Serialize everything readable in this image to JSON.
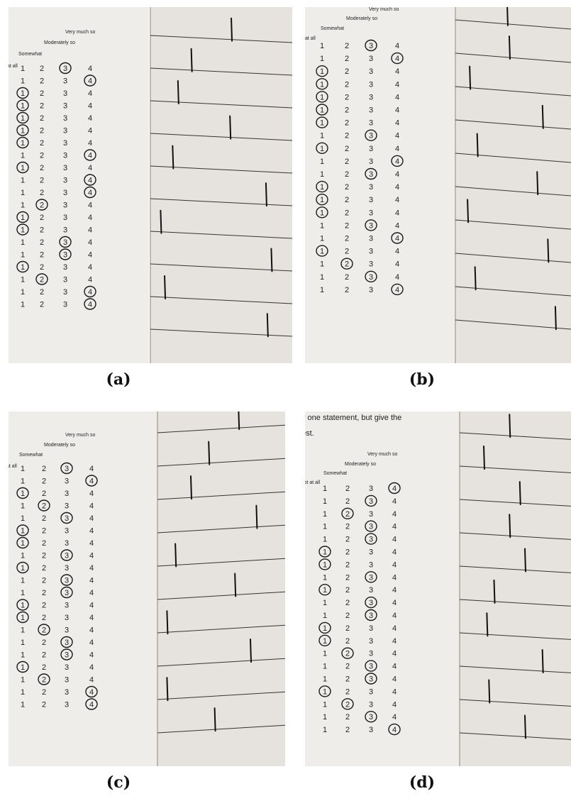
{
  "figure": {
    "panels": [
      {
        "caption": "(a)",
        "header": {
          "very_much": "Very much so",
          "moderately": "Moderately so",
          "somewhat": "Somewhat",
          "not_at_all": "at all"
        },
        "scale": [
          "1",
          "2",
          "3",
          "4"
        ],
        "circled": [
          3,
          4,
          1,
          1,
          1,
          1,
          1,
          4,
          1,
          4,
          4,
          2,
          1,
          1,
          3,
          3,
          1,
          2,
          4,
          4
        ],
        "slider_marks": [
          0.58,
          0.28,
          0.18,
          0.57,
          0.14,
          0.84,
          0.05,
          0.88,
          0.08,
          0.85
        ]
      },
      {
        "caption": "(b)",
        "header": {
          "very_much": "Very much so",
          "moderately": "Moderately so",
          "somewhat": "Somewhat",
          "not_at_all": "at all"
        },
        "scale": [
          "1",
          "2",
          "3",
          "4"
        ],
        "circled": [
          3,
          4,
          1,
          1,
          1,
          1,
          1,
          3,
          1,
          4,
          3,
          1,
          1,
          1,
          3,
          4,
          1,
          2,
          3,
          4
        ],
        "slider_marks": [
          0.45,
          0.47,
          0.1,
          0.78,
          0.17,
          0.73,
          0.08,
          0.83,
          0.15,
          0.9
        ]
      },
      {
        "caption": "(c)",
        "header": {
          "very_much": "Very much so",
          "moderately": "Moderately so",
          "somewhat": "Somewhat",
          "not_at_all": "at all"
        },
        "scale": [
          "1",
          "2",
          "3",
          "4"
        ],
        "circled": [
          3,
          4,
          1,
          2,
          3,
          1,
          1,
          3,
          1,
          3,
          3,
          1,
          1,
          2,
          3,
          3,
          1,
          2,
          4,
          4
        ],
        "slider_marks": [
          0.65,
          0.4,
          0.25,
          0.8,
          0.12,
          0.62,
          0.05,
          0.75,
          0.05,
          0.45
        ]
      },
      {
        "caption": "(d)",
        "header": {
          "instructions": "y one statement, but give the",
          "instructions2": "est.",
          "very_much": "Very much so",
          "moderately": "Moderately so",
          "somewhat": "Somewhat",
          "not_at_all": "lot at all"
        },
        "scale": [
          "1",
          "2",
          "3",
          "4"
        ],
        "circled": [
          4,
          3,
          2,
          3,
          3,
          1,
          1,
          3,
          1,
          3,
          3,
          1,
          1,
          2,
          3,
          3,
          1,
          2,
          3,
          4
        ],
        "slider_marks": [
          0.45,
          0.2,
          0.55,
          0.45,
          0.6,
          0.3,
          0.23,
          0.77,
          0.25,
          0.6
        ]
      }
    ]
  }
}
